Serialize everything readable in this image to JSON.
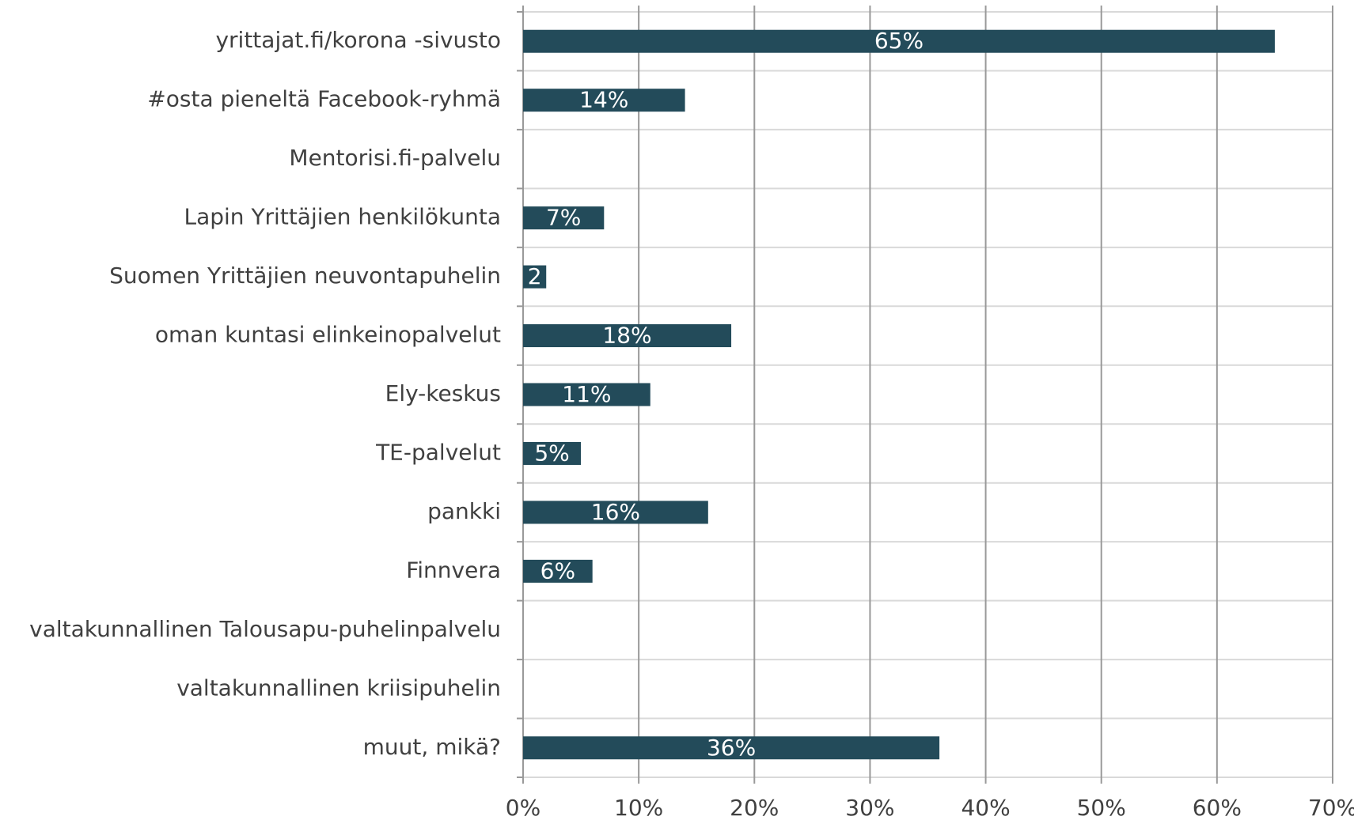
{
  "chart_data": {
    "type": "bar",
    "orientation": "horizontal",
    "categories": [
      "yrittajat.fi/korona -sivusto",
      "#osta pieneltä Facebook-ryhmä",
      "Mentorisi.fi-palvelu",
      "Lapin Yrittäjien henkilökunta",
      "Suomen Yrittäjien neuvontapuhelin",
      "oman kuntasi elinkeinopalvelut",
      "Ely-keskus",
      "TE-palvelut",
      "pankki",
      "Finnvera",
      "valtakunnallinen Talousapu-puhelinpalvelu",
      "valtakunnallinen kriisipuhelin",
      "muut, mikä?"
    ],
    "values": [
      65,
      14,
      0,
      7,
      2,
      18,
      11,
      5,
      16,
      6,
      0,
      0,
      36
    ],
    "value_labels": [
      "65%",
      "14%",
      null,
      "7%",
      "2",
      "18%",
      "11%",
      "5%",
      "16%",
      "6%",
      null,
      null,
      "36%"
    ],
    "color": "#234b5a",
    "xlim": [
      0,
      70
    ],
    "xticks": [
      {
        "value": 0,
        "label": "0%"
      },
      {
        "value": 10,
        "label": "10%"
      },
      {
        "value": 20,
        "label": "20%"
      },
      {
        "value": 30,
        "label": "30%"
      },
      {
        "value": 40,
        "label": "40%"
      },
      {
        "value": 50,
        "label": "50%"
      },
      {
        "value": 60,
        "label": "60%"
      },
      {
        "value": 70,
        "label": "70%"
      }
    ],
    "grid": true
  }
}
